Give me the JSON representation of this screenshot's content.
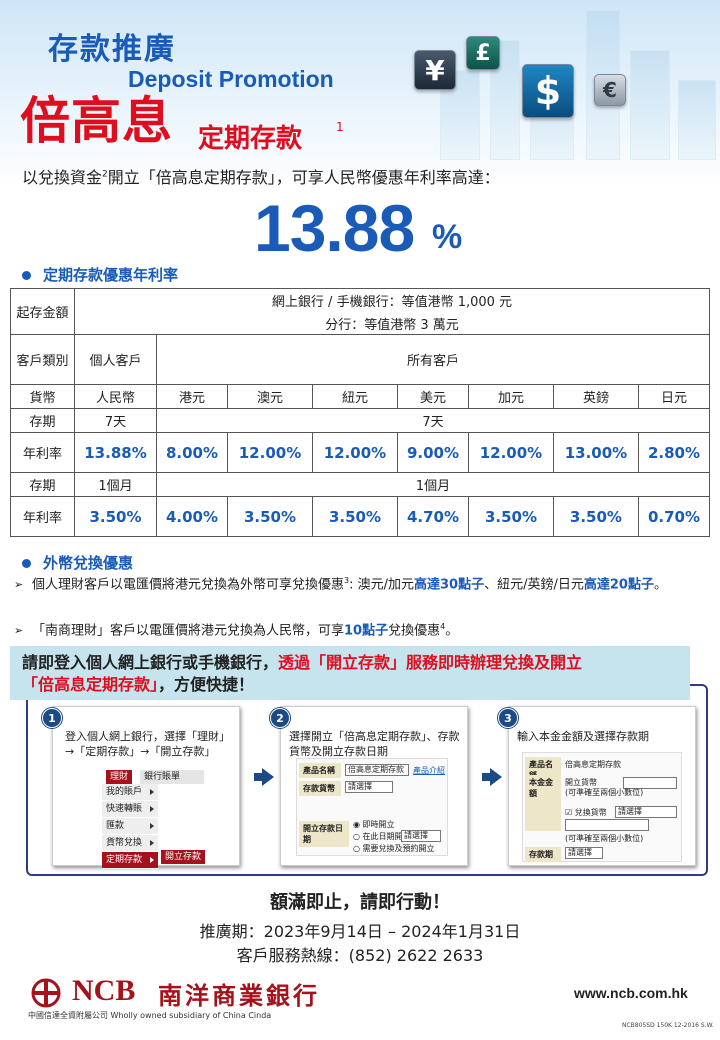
{
  "header": {
    "title_cn": "存款推廣",
    "title_en": "Deposit Promotion",
    "currency_icons": [
      "yen-icon",
      "pound-icon",
      "dollar-icon",
      "euro-icon"
    ],
    "currency_symbols": {
      "yen": "¥",
      "gbp": "£",
      "usd": "$",
      "eur": "€"
    }
  },
  "hero": {
    "main": "倍高息",
    "sub": "定期存款",
    "sup": "1",
    "intro_a": "以兌換資金",
    "intro_sup": "2",
    "intro_b": "開立「倍高息定期存款」，可享人民幣優惠年利率高達：",
    "rate": "13.88",
    "pct": "%"
  },
  "rates_section": {
    "heading": "定期存款優惠年利率",
    "min_label": "起存金額",
    "min_line1": "網上銀行 / 手機銀行：等值港幣 1,000 元",
    "min_line2": "分行：等值港幣 3 萬元",
    "cust_label": "客戶類別",
    "cust_individual": "個人客戶",
    "cust_all": "所有客戶",
    "ccy_label": "貨幣",
    "currencies": [
      "人民幣",
      "港元",
      "澳元",
      "紐元",
      "美元",
      "加元",
      "英鎊",
      "日元"
    ],
    "tenor_label": "存期",
    "rate_label": "年利率",
    "tenor1_rmb": "7天",
    "tenor1_others": "7天",
    "rates_7d": [
      "13.88%",
      "8.00%",
      "12.00%",
      "12.00%",
      "9.00%",
      "12.00%",
      "13.00%",
      "2.80%"
    ],
    "tenor2_rmb": "1個月",
    "tenor2_others": "1個月",
    "rates_1m": [
      "3.50%",
      "4.00%",
      "3.50%",
      "3.50%",
      "4.70%",
      "3.50%",
      "3.50%",
      "0.70%"
    ]
  },
  "fx_section": {
    "heading": "外幣兌換優惠",
    "b1_a": "個人理財客戶以電匯價將港元兌換為外幣可享兌換優惠",
    "b1_sup": "3",
    "b1_b": ": 澳元/加元",
    "b1_hl1": "高達30點子",
    "b1_c": "、紐元/英鎊/日元",
    "b1_hl2": "高達20點子",
    "b1_d": "。",
    "b2_a": "「南商理財」客戶以電匯價將港元兌換為人民幣，可享",
    "b2_hl": "10點子",
    "b2_b": "兌換優惠",
    "b2_sup": "4",
    "b2_c": "。"
  },
  "cta": {
    "a": "請即登入個人網上銀行或手機銀行，",
    "red1": "透過「開立存款」服務即時辦理兌換及開立",
    "red2": "「倍高息定期存款」",
    "b": "，方便快捷！"
  },
  "steps": [
    {
      "num": "1",
      "text": "登入個人網上銀行，選擇「理財」→「定期存款」→「開立存款」"
    },
    {
      "num": "2",
      "text": "選擇開立「倍高息定期存款」、存款貨幣及開立存款日期"
    },
    {
      "num": "3",
      "text": "輸入本金金額及選擇存款期"
    }
  ],
  "step1_menu": {
    "tab_active": "理財",
    "tab_other": "銀行賬單",
    "items": [
      "我的賬戶",
      "快速轉賬",
      "匯款",
      "貨幣兌換",
      "定期存款"
    ],
    "sub_item": "開立存款"
  },
  "step2_form": {
    "product_label": "產品名稱",
    "product_value": "倍高息定期存款",
    "product_link": "產品介紹",
    "ccy_label": "存款貨幣",
    "ccy_value": "請選擇",
    "date_label": "開立存款日期",
    "opt1": "即時開立",
    "opt2": "在此日期開立",
    "opt2_select": "請選擇",
    "opt3": "需要兌換及預約開立"
  },
  "step3_form": {
    "product_label": "產品名稱",
    "product_value": "倍高息定期存款",
    "amount_label": "本金金額",
    "amount_line1": "開立貨幣",
    "amount_hint1": "(可準確至兩個小數位)",
    "convert_label": "兌換貨幣",
    "convert_select": "請選擇",
    "amount_hint2": "(可準確至兩個小數位)",
    "term_label": "存款期",
    "term_value": "請選擇"
  },
  "footer": {
    "headline": "額滿即止，請即行動！",
    "period": "推廣期：2023年9月14日 – 2024年1月31日",
    "hotline": "客戶服務熱線：(852) 2622 2633",
    "logo_en": "NCB",
    "logo_cn": "南洋商業銀行",
    "logo_sub": "中國信達全資附屬公司 Wholly owned subsidiary of China Cinda",
    "url": "www.ncb.com.hk",
    "code": "NCB805SD 150K 12-2016 S.W."
  }
}
